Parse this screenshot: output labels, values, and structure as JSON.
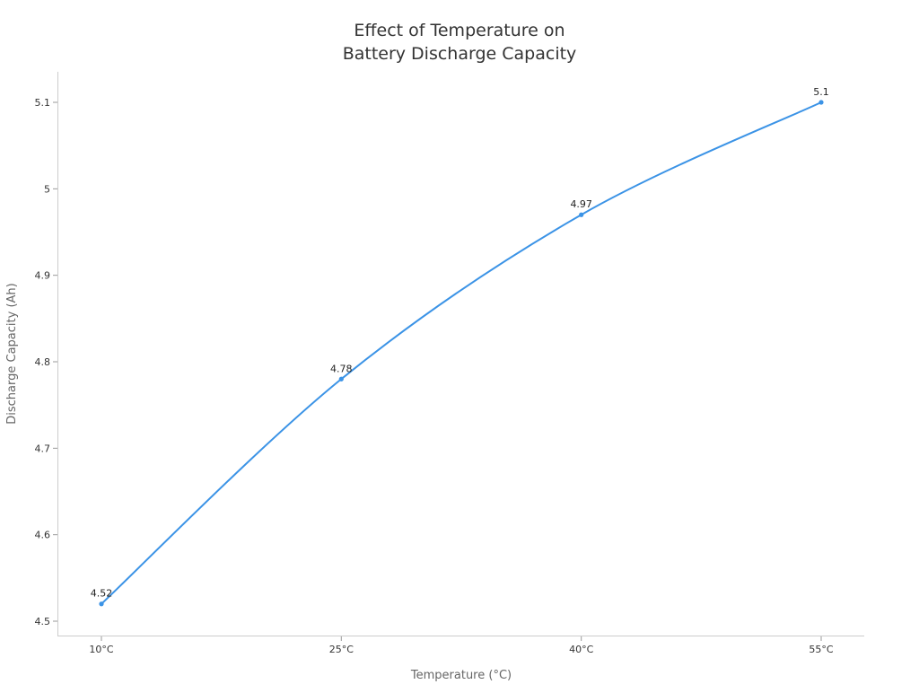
{
  "chart_data": {
    "type": "line",
    "title_lines": [
      "Effect of Temperature on",
      "Battery Discharge Capacity"
    ],
    "xlabel": "Temperature (°C)",
    "ylabel": "Discharge Capacity (Ah)",
    "categories": [
      "10°C",
      "25°C",
      "40°C",
      "55°C"
    ],
    "values": [
      4.52,
      4.78,
      4.97,
      5.1
    ],
    "data_labels": [
      "4.52",
      "4.78",
      "4.97",
      "5.1"
    ],
    "yticks": [
      4.5,
      4.6,
      4.7,
      4.8,
      4.9,
      5,
      5.1
    ],
    "ytick_labels": [
      "4.5",
      "4.6",
      "4.7",
      "4.8",
      "4.9",
      "5",
      "5.1"
    ],
    "ylim": [
      4.483,
      5.135
    ],
    "grid": false,
    "line_color": "#3b93e6",
    "smooth": true
  }
}
